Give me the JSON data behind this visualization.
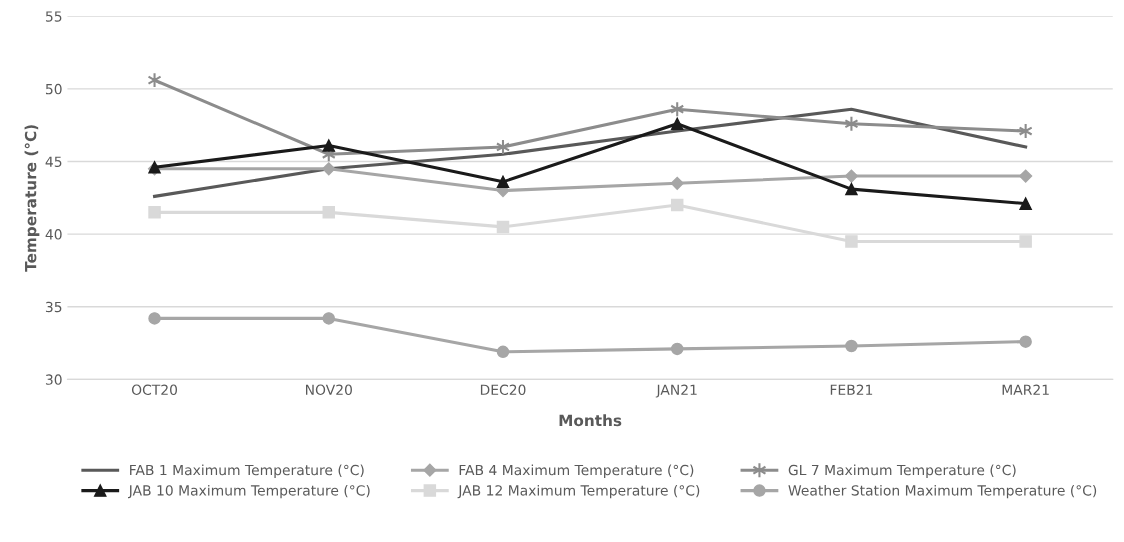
{
  "chart_data": {
    "type": "line",
    "xlabel": "Months",
    "ylabel": "Temperature (°C)",
    "categories": [
      "OCT20",
      "NOV20",
      "DEC20",
      "JAN21",
      "FEB21",
      "MAR21"
    ],
    "ylim": [
      30,
      55
    ],
    "yticks": [
      30,
      35,
      40,
      45,
      50,
      55
    ],
    "grid": "y",
    "legend": "bottom",
    "line_style": "solid",
    "series": [
      {
        "name": "FAB 1 Maximum Temperature (°C)",
        "color": "#595959",
        "marker": "none",
        "values": [
          42.6,
          44.5,
          45.5,
          47.1,
          48.6,
          46.0
        ]
      },
      {
        "name": "FAB 4 Maximum Temperature (°C)",
        "color": "#a6a6a6",
        "marker": "diamond",
        "values": [
          44.5,
          44.5,
          43.0,
          43.5,
          44.0,
          44.0
        ]
      },
      {
        "name": "GL 7 Maximum Temperature (°C)",
        "color": "#8c8c8c",
        "marker": "cross",
        "values": [
          50.6,
          45.5,
          46.0,
          48.6,
          47.6,
          47.1
        ]
      },
      {
        "name": "JAB 10 Maximum Temperature (°C)",
        "color": "#1a1a1a",
        "marker": "triangle",
        "values": [
          44.6,
          46.1,
          43.6,
          47.6,
          43.1,
          42.1
        ]
      },
      {
        "name": "JAB 12 Maximum Temperature (°C)",
        "color": "#d9d9d9",
        "marker": "square",
        "values": [
          41.5,
          41.5,
          40.5,
          42.0,
          39.5,
          39.5
        ]
      },
      {
        "name": "Weather Station Maximum Temperature (°C)",
        "color": "#a6a6a6",
        "marker": "circle",
        "values": [
          34.2,
          34.2,
          31.9,
          32.1,
          32.3,
          32.6
        ]
      }
    ]
  }
}
